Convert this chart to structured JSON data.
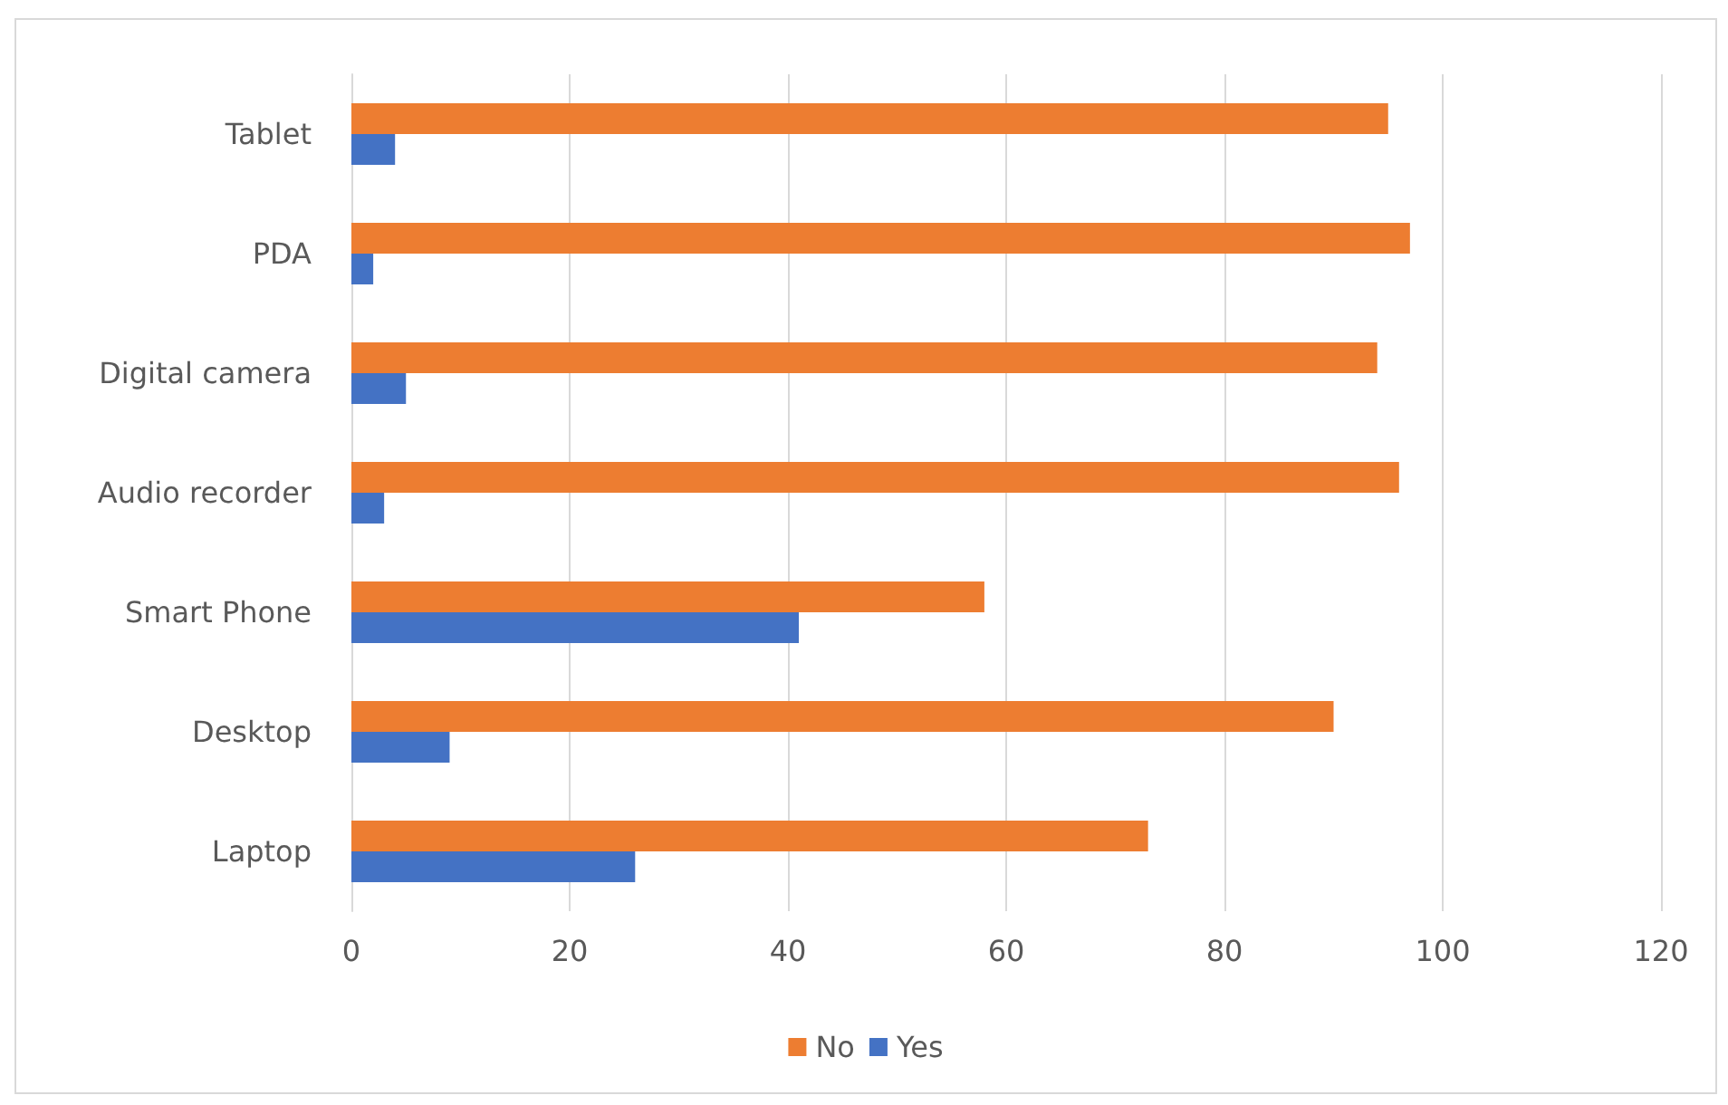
{
  "chart_data": {
    "type": "bar",
    "orientation": "horizontal",
    "categories": [
      "Tablet",
      "PDA",
      "Digital camera",
      "Audio recorder",
      "Smart Phone",
      "Desktop",
      "Laptop"
    ],
    "series": [
      {
        "name": "No",
        "color": "#ed7d31",
        "values": [
          95,
          97,
          94,
          96,
          58,
          90,
          73
        ]
      },
      {
        "name": "Yes",
        "color": "#4472c4",
        "values": [
          4,
          2,
          5,
          3,
          41,
          9,
          26
        ]
      }
    ],
    "xlim": [
      0,
      120
    ],
    "xticks": [
      0,
      20,
      40,
      60,
      80,
      100,
      120
    ],
    "grid": "x",
    "legend": "bottom"
  }
}
